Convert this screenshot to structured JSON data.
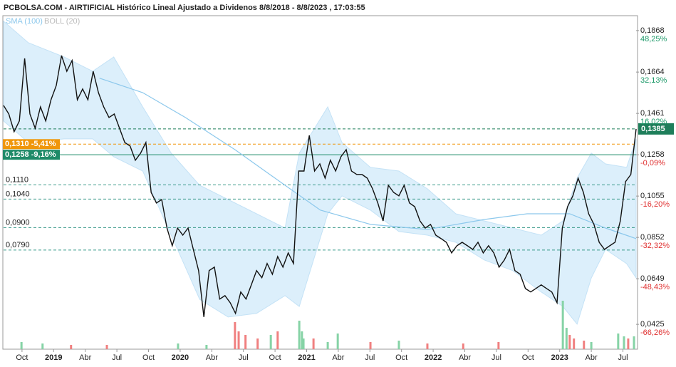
{
  "chart_data": {
    "type": "line",
    "title": "PCBOLSA.COM - AIRTIFICIAL Histórico Lineal Ajustado a Dividenos 8/8/2018 - 8/8/2023 , 17:03:55",
    "xlim": [
      0,
      120
    ],
    "ylim": [
      0.0303,
      0.1941
    ],
    "y2lim": [
      -75.95,
      54.05
    ],
    "xticks": [
      {
        "value": 3.5,
        "label": "Oct"
      },
      {
        "value": 9.5,
        "label": "2019"
      },
      {
        "value": 15.5,
        "label": "Abr"
      },
      {
        "value": 21.5,
        "label": "Jul"
      },
      {
        "value": 27.5,
        "label": "Oct"
      },
      {
        "value": 33.5,
        "label": "2020"
      },
      {
        "value": 39.5,
        "label": "Abr"
      },
      {
        "value": 45.5,
        "label": "Jul"
      },
      {
        "value": 51.5,
        "label": "Oct"
      },
      {
        "value": 57.5,
        "label": "2021"
      },
      {
        "value": 63.5,
        "label": "Abr"
      },
      {
        "value": 69.5,
        "label": "Jul"
      },
      {
        "value": 75.5,
        "label": "Oct"
      },
      {
        "value": 81.5,
        "label": "2022"
      },
      {
        "value": 87.5,
        "label": "Abr"
      },
      {
        "value": 93.5,
        "label": "Jul"
      },
      {
        "value": 99.5,
        "label": "Oct"
      },
      {
        "value": 105.5,
        "label": "2023"
      },
      {
        "value": 111.5,
        "label": "Abr"
      },
      {
        "value": 117.5,
        "label": "Jul"
      }
    ],
    "yticks": [
      {
        "value": 0.1868,
        "label": "0,1868"
      },
      {
        "value": 0.1664,
        "label": "0,1664"
      },
      {
        "value": 0.1461,
        "label": "0,1461"
      },
      {
        "value": 0.1258,
        "label": "0,1258"
      },
      {
        "value": 0.1055,
        "label": "0,1055"
      },
      {
        "value": 0.0852,
        "label": "0,0852"
      },
      {
        "value": 0.0649,
        "label": "0,0649"
      },
      {
        "value": 0.0425,
        "label": "0,0425"
      }
    ],
    "y2ticks": [
      {
        "value": 48.25,
        "label": "48,25%"
      },
      {
        "value": 32.13,
        "label": "32,13%"
      },
      {
        "value": 16.02,
        "label": "16,02%"
      },
      {
        "value": -0.09,
        "label": "-0,09%"
      },
      {
        "value": -16.2,
        "label": "-16,20%"
      },
      {
        "value": -32.32,
        "label": "-32,32%"
      },
      {
        "value": -48.43,
        "label": "-48,43%"
      },
      {
        "value": -66.26,
        "label": "-66,26%"
      }
    ],
    "series": [
      {
        "color": "#111111",
        "x": [
          0,
          1,
          2,
          3,
          4,
          5,
          6,
          7,
          8,
          9,
          10,
          11,
          12,
          13,
          14,
          15,
          16,
          17,
          18,
          19,
          20,
          21,
          22,
          23,
          24,
          25,
          26,
          27,
          28,
          29,
          30,
          31,
          32,
          33,
          34,
          35,
          36,
          37,
          38,
          39,
          40,
          41,
          42,
          43,
          44,
          45,
          46,
          47,
          48,
          49,
          50,
          51,
          52,
          53,
          54,
          55,
          56,
          57,
          58,
          59,
          60,
          61,
          62,
          63,
          64,
          65,
          66,
          67,
          68,
          69,
          70,
          71,
          72,
          73,
          74,
          75,
          76,
          77,
          78,
          79,
          80,
          81,
          82,
          83,
          84,
          85,
          86,
          87,
          88,
          89,
          90,
          91,
          92,
          93,
          94,
          95,
          96,
          97,
          98,
          99,
          100,
          101,
          102,
          103,
          104,
          105,
          106,
          107,
          108,
          109,
          110,
          111,
          112,
          113,
          114,
          115,
          116,
          117,
          118,
          119,
          120
        ],
        "values": [
          0.15,
          0.1458,
          0.1371,
          0.1424,
          0.1731,
          0.1458,
          0.1388,
          0.1493,
          0.1424,
          0.1528,
          0.1598,
          0.1745,
          0.1668,
          0.1721,
          0.1528,
          0.1581,
          0.1528,
          0.1668,
          0.1563,
          0.1493,
          0.1441,
          0.1458,
          0.1388,
          0.1318,
          0.1301,
          0.1231,
          0.1266,
          0.1318,
          0.1073,
          0.1021,
          0.1038,
          0.0898,
          0.0811,
          0.0898,
          0.0863,
          0.0898,
          0.0793,
          0.0689,
          0.0461,
          0.0689,
          0.0706,
          0.0549,
          0.0566,
          0.0531,
          0.0479,
          0.0584,
          0.0549,
          0.0619,
          0.0689,
          0.0654,
          0.0724,
          0.0671,
          0.0758,
          0.0706,
          0.0776,
          0.0724,
          0.1178,
          0.1178,
          0.1353,
          0.1178,
          0.1213,
          0.1143,
          0.1231,
          0.1178,
          0.1248,
          0.1283,
          0.1178,
          0.1161,
          0.1161,
          0.1143,
          0.1091,
          0.1021,
          0.0933,
          0.1108,
          0.1073,
          0.1056,
          0.1108,
          0.1021,
          0.1003,
          0.0933,
          0.0898,
          0.0916,
          0.0863,
          0.0846,
          0.0828,
          0.0776,
          0.0811,
          0.0828,
          0.0811,
          0.0793,
          0.0828,
          0.0776,
          0.0811,
          0.0776,
          0.0706,
          0.0741,
          0.0793,
          0.0689,
          0.0671,
          0.0601,
          0.0584,
          0.0601,
          0.0619,
          0.0601,
          0.0584,
          0.0531,
          0.0898,
          0.1003,
          0.1056,
          0.1143,
          0.1073,
          0.0968,
          0.0916,
          0.0828,
          0.0793,
          0.0811,
          0.0828,
          0.0933,
          0.1126,
          0.1161,
          0.1385
        ]
      },
      {
        "name": "SMA (100)",
        "color": "#8cc8ec",
        "x": [
          18.2,
          26.4,
          34.5,
          43.9,
          53.4,
          60.1,
          69.6,
          80.4,
          91.2,
          99.3,
          107.4,
          114.2,
          120
        ],
        "values": [
          0.1634,
          0.1563,
          0.1441,
          0.1283,
          0.1108,
          0.0986,
          0.0916,
          0.0891,
          0.094,
          0.0968,
          0.0968,
          0.0898,
          0.0846
        ]
      }
    ],
    "bands": {
      "name": "BOLL (20)",
      "color": "#d6ecfa",
      "x": [
        0,
        4.7,
        11.5,
        16.9,
        20.9,
        26.4,
        31.8,
        37.2,
        42.6,
        48,
        53.4,
        56.1,
        61.5,
        64.2,
        69.6,
        75,
        80.4,
        85.8,
        91.2,
        96.6,
        102,
        106.1,
        108.8,
        111.5,
        114.2,
        118.2,
        120
      ],
      "upper": [
        0.1914,
        0.1808,
        0.1738,
        0.1668,
        0.1738,
        0.1493,
        0.1266,
        0.1108,
        0.1038,
        0.0968,
        0.0898,
        0.1266,
        0.1493,
        0.1318,
        0.1196,
        0.1178,
        0.1091,
        0.0968,
        0.0933,
        0.0898,
        0.0863,
        0.0933,
        0.1143,
        0.1266,
        0.1213,
        0.1196,
        0.1336
      ],
      "lower": [
        0.1424,
        0.1318,
        0.1336,
        0.1336,
        0.1248,
        0.1178,
        0.0863,
        0.0548,
        0.0461,
        0.0479,
        0.0566,
        0.0513,
        0.0968,
        0.1056,
        0.0986,
        0.0881,
        0.0863,
        0.0828,
        0.0741,
        0.0689,
        0.0584,
        0.0513,
        0.0426,
        0.0653,
        0.0793,
        0.0723,
        0.0653
      ]
    },
    "volume_lim": [
      0,
      100
    ],
    "volume": [
      {
        "color": "#86d3a6",
        "x": [
          3.4,
          7.4,
          33.1,
          38.5,
          50.7,
          56.1,
          56.6,
          56.9,
          61.5,
          63.4,
          75,
          106.1,
          106.8,
          111.5,
          116.6,
          117.7,
          119.6
        ],
        "values": [
          10,
          8,
          8,
          6,
          20,
          40,
          25,
          15,
          10,
          22,
          12,
          68,
          30,
          10,
          22,
          18,
          18
        ]
      },
      {
        "color": "#f08080",
        "x": [
          12.8,
          19.6,
          43.9,
          44.6,
          45.9,
          48.2,
          52,
          58.8,
          69.6,
          80.4,
          87.2,
          93.9,
          107.4,
          108.2,
          110.1,
          118.5
        ],
        "values": [
          6,
          6,
          38,
          25,
          20,
          15,
          25,
          15,
          10,
          8,
          8,
          10,
          20,
          15,
          12,
          15
        ]
      }
    ],
    "levels": [
      {
        "value": 0.1385,
        "label": "0,1385",
        "color": "#1e7e5a",
        "style": "dashed",
        "box": "right"
      },
      {
        "value": 0.131,
        "label": "0,1310 -5,41%",
        "color": "#f0960a",
        "style": "dashed",
        "box": "left"
      },
      {
        "value": 0.1258,
        "label": "0,1258 -9,16%",
        "color": "#1e8a68",
        "style": "solid",
        "box": "left"
      },
      {
        "value": 0.111,
        "label": "0,1110",
        "color": "#3a9a8a",
        "style": "dashed",
        "box": "none"
      },
      {
        "value": 0.104,
        "label": "0,1040",
        "color": "#3a9a8a",
        "style": "dashed",
        "box": "none"
      },
      {
        "value": 0.09,
        "label": "0,0900",
        "color": "#3a9a8a",
        "style": "dashed",
        "box": "none"
      },
      {
        "value": 0.079,
        "label": "0,0790",
        "color": "#3a9a8a",
        "style": "dashed",
        "box": "none"
      }
    ]
  }
}
